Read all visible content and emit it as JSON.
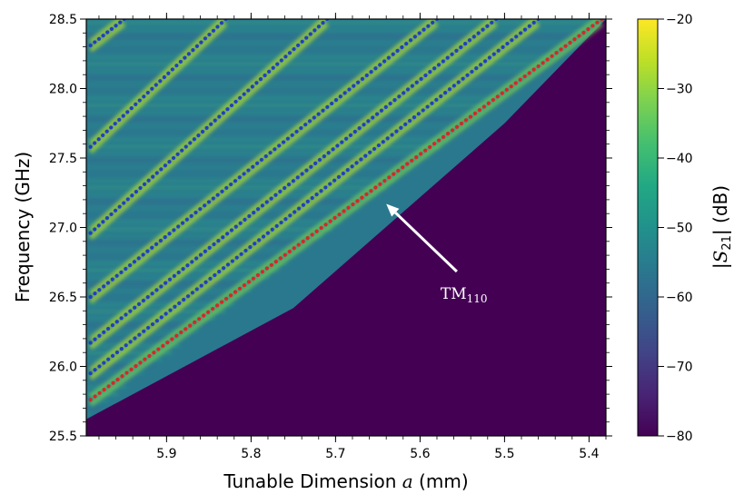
{
  "chart_data": {
    "type": "heatmap",
    "title": "",
    "xlabel_prefix": "Tunable Dimension ",
    "xlabel_var": "a",
    "xlabel_suffix": " (mm)",
    "ylabel": "Frequency (GHz)",
    "xlim": [
      5.995,
      5.38
    ],
    "ylim": [
      25.5,
      28.5
    ],
    "x_ticks": [
      5.9,
      5.8,
      5.7,
      5.6,
      5.5,
      5.4
    ],
    "x_tick_labels": [
      "5.9",
      "5.8",
      "5.7",
      "5.6",
      "5.5",
      "5.4"
    ],
    "y_ticks": [
      25.5,
      26.0,
      26.5,
      27.0,
      27.5,
      28.0,
      28.5
    ],
    "y_tick_labels": [
      "25.5",
      "26.0",
      "26.5",
      "27.0",
      "27.5",
      "28.0",
      "28.5"
    ],
    "colorbar": {
      "colormap": "viridis",
      "range": [
        -80,
        -20
      ],
      "ticks": [
        -20,
        -30,
        -40,
        -50,
        -60,
        -70,
        -80
      ],
      "tick_labels": [
        "−20",
        "−30",
        "−40",
        "−50",
        "−60",
        "−70",
        "−80"
      ],
      "label_left": "|",
      "label_var": "S",
      "label_sub": "21",
      "label_right": "| (dB)"
    },
    "cutoff_boundary": [
      [
        5.995,
        25.62
      ],
      [
        5.75,
        26.42
      ],
      [
        5.5,
        27.75
      ],
      [
        5.38,
        28.5
      ]
    ],
    "mode_lines": [
      {
        "color": "#d62728",
        "points": [
          [
            5.99,
            25.76
          ],
          [
            5.385,
            28.5
          ]
        ]
      },
      {
        "color": "#1f3fbf",
        "points": [
          [
            5.99,
            25.95
          ],
          [
            5.46,
            28.5
          ]
        ]
      },
      {
        "color": "#1f3fbf",
        "points": [
          [
            5.99,
            26.17
          ],
          [
            5.51,
            28.5
          ]
        ]
      },
      {
        "color": "#1f3fbf",
        "points": [
          [
            5.99,
            26.5
          ],
          [
            5.58,
            28.5
          ]
        ]
      },
      {
        "color": "#1f3fbf",
        "points": [
          [
            5.99,
            26.96
          ],
          [
            5.71,
            28.5
          ]
        ]
      },
      {
        "color": "#1f3fbf",
        "points": [
          [
            5.99,
            27.58
          ],
          [
            5.83,
            28.5
          ]
        ]
      },
      {
        "color": "#1f3fbf",
        "points": [
          [
            5.99,
            28.31
          ],
          [
            5.95,
            28.5
          ]
        ]
      }
    ],
    "annotation": {
      "text_main": "TM",
      "text_sub": "110",
      "text_at": [
        5.55,
        26.5
      ],
      "arrow_to": [
        5.64,
        27.17
      ]
    }
  },
  "colors": {
    "background_low": "#440154",
    "marker_red": "#d62728",
    "marker_blue": "#1f3fbf",
    "arrow": "#ffffff"
  }
}
